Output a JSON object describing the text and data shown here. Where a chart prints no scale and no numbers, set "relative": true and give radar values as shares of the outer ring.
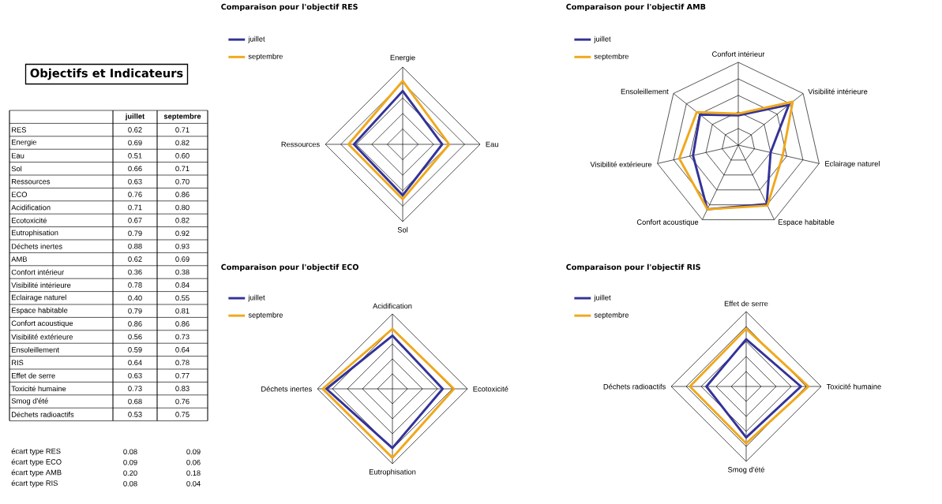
{
  "chart_data": [
    {
      "type": "other",
      "title": "Objectifs et Indicateurs",
      "categories": [
        "RES",
        "Energie",
        "Eau",
        "Sol",
        "Ressources",
        "ECO",
        "Acidification",
        "Ecotoxicité",
        "Eutrophisation",
        "Déchets inertes",
        "AMB",
        "Confort intérieur",
        "Visibilité intérieure",
        "Eclairage naturel",
        "Espace habitable",
        "Confort acoustique",
        "Visibilité extérieure",
        "Ensoleillement",
        "RIS",
        "Effet de serre",
        "Toxicité humaine",
        "Smog d'été",
        "Déchets radioactifs"
      ],
      "series": [
        {
          "name": "juillet",
          "values": [
            0.62,
            0.69,
            0.51,
            0.66,
            0.63,
            0.76,
            0.71,
            0.67,
            0.79,
            0.88,
            0.62,
            0.36,
            0.78,
            0.4,
            0.79,
            0.86,
            0.56,
            0.59,
            0.64,
            0.63,
            0.73,
            0.68,
            0.53
          ],
          "value_labels": [
            "0.62",
            "0.69",
            "0.51",
            "0.66",
            "0.63",
            "0.76",
            "0.71",
            "0.67",
            "0.79",
            "0.88",
            "0.62",
            "0.36",
            "0.78",
            "0.40",
            "0.79",
            "0.86",
            "0.56",
            "0.59",
            "0.64",
            "0.63",
            "0.73",
            "0.68",
            "0.53"
          ]
        },
        {
          "name": "septembre",
          "values": [
            0.71,
            0.82,
            0.6,
            0.71,
            0.7,
            0.86,
            0.8,
            0.82,
            0.92,
            0.93,
            0.69,
            0.38,
            0.84,
            0.55,
            0.81,
            0.86,
            0.73,
            0.64,
            0.78,
            0.77,
            0.83,
            0.76,
            0.75
          ],
          "value_labels": [
            "0.71",
            "0.82",
            "0.60",
            "0.71",
            "0.70",
            "0.86",
            "0.80",
            "0.82",
            "0.92",
            "0.93",
            "0.69",
            "0.38",
            "0.84",
            "0.55",
            "0.81",
            "0.86",
            "0.73",
            "0.64",
            "0.78",
            "0.77",
            "0.83",
            "0.76",
            "0.75"
          ]
        }
      ]
    },
    {
      "type": "other",
      "categories": [
        "écart type RES",
        "écart type ECO",
        "écart type AMB",
        "écart type RIS"
      ],
      "series": [
        {
          "values": [
            0.08,
            0.09,
            0.2,
            0.08
          ],
          "value_labels": [
            "0.08",
            "0.09",
            "0.20",
            "0.08"
          ]
        },
        {
          "values": [
            0.09,
            0.06,
            0.18,
            0.04
          ],
          "value_labels": [
            "0.09",
            "0.06",
            "0.18",
            "0.04"
          ]
        }
      ]
    },
    {
      "type": "radar",
      "title": "Comparaison pour l'objectif RES",
      "relative": true,
      "legend": "top left",
      "categories": [
        "Energie",
        "Eau",
        "Sol",
        "Ressources"
      ],
      "series": [
        {
          "name": "juillet",
          "color": "#333399",
          "values": [
            0.69,
            0.51,
            0.66,
            0.63
          ]
        },
        {
          "name": "septembre",
          "color": "#f0a81c",
          "values": [
            0.82,
            0.6,
            0.71,
            0.7
          ]
        }
      ]
    },
    {
      "type": "radar",
      "title": "Comparaison pour l'objectif AMB",
      "relative": true,
      "legend": "top left",
      "categories": [
        "Confort intérieur",
        "Visibilité intérieure",
        "Eclairage naturel",
        "Espace habitable",
        "Confort acoustique",
        "Visibilité extérieure",
        "Ensoleillement"
      ],
      "series": [
        {
          "name": "juillet",
          "color": "#333399",
          "values": [
            0.36,
            0.78,
            0.4,
            0.79,
            0.86,
            0.56,
            0.59
          ]
        },
        {
          "name": "septembre",
          "color": "#f0a81c",
          "values": [
            0.38,
            0.84,
            0.55,
            0.81,
            0.86,
            0.73,
            0.64
          ]
        }
      ]
    },
    {
      "type": "radar",
      "title": "Comparaison pour l'objectif ECO",
      "relative": true,
      "legend": "top left",
      "categories": [
        "Acidification",
        "Ecotoxicité",
        "Eutrophisation",
        "Déchets inertes"
      ],
      "series": [
        {
          "name": "juillet",
          "color": "#333399",
          "values": [
            0.71,
            0.67,
            0.79,
            0.88
          ]
        },
        {
          "name": "septembre",
          "color": "#f0a81c",
          "values": [
            0.8,
            0.82,
            0.92,
            0.93
          ]
        }
      ]
    },
    {
      "type": "radar",
      "title": "Comparaison pour l'objectif RIS",
      "relative": true,
      "legend": "top left",
      "categories": [
        "Effet de serre",
        "Toxicité humaine",
        "Smog d'été",
        "Déchets radioactifs"
      ],
      "series": [
        {
          "name": "juillet",
          "color": "#333399",
          "values": [
            0.63,
            0.73,
            0.68,
            0.53
          ]
        },
        {
          "name": "septembre",
          "color": "#f0a81c",
          "values": [
            0.77,
            0.83,
            0.76,
            0.75
          ]
        }
      ]
    }
  ]
}
